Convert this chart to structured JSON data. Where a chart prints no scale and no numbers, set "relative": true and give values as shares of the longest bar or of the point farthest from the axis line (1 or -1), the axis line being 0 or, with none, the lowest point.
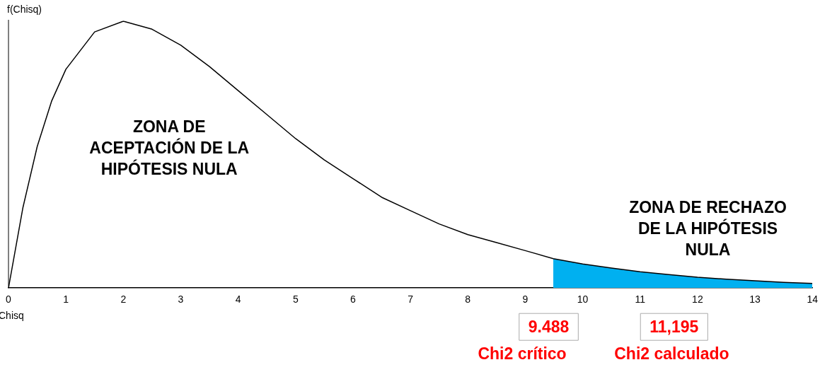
{
  "chart_data": {
    "type": "line",
    "relative": true,
    "xlabel": "Chisq",
    "ylabel": "f(Chisq)",
    "xlim": [
      0,
      14
    ],
    "xticks": [
      0,
      1,
      2,
      3,
      4,
      5,
      6,
      7,
      8,
      9,
      10,
      11,
      12,
      13,
      14
    ],
    "grid": false,
    "legend": false,
    "marker": "none",
    "series": [
      {
        "type": "line",
        "color": "#000000",
        "x": [
          0,
          0.25,
          0.5,
          0.75,
          1,
          1.5,
          2,
          2.5,
          3,
          3.5,
          4,
          4.5,
          5,
          5.5,
          6,
          6.5,
          7,
          7.5,
          8,
          8.5,
          9,
          9.488,
          10,
          10.5,
          11,
          11.5,
          12,
          12.5,
          13,
          13.5,
          14
        ],
        "values": [
          0,
          0.3,
          0.53,
          0.7,
          0.82,
          0.96,
          1,
          0.97,
          0.91,
          0.83,
          0.74,
          0.65,
          0.56,
          0.48,
          0.41,
          0.34,
          0.29,
          0.24,
          0.2,
          0.17,
          0.14,
          0.11,
          0.09,
          0.075,
          0.061,
          0.05,
          0.04,
          0.033,
          0.027,
          0.021,
          0.017
        ]
      },
      {
        "type": "area",
        "color": "#00b0f0",
        "x": [
          9.488,
          10,
          10.5,
          11,
          11.5,
          12,
          12.5,
          13,
          13.5,
          14
        ],
        "values": [
          0.11,
          0.09,
          0.075,
          0.061,
          0.05,
          0.04,
          0.033,
          0.027,
          0.021,
          0.017
        ]
      }
    ],
    "annotations": [
      "ZONA DE\nACEPTACIÓN DE LA\nHIPÓTESIS NULA",
      "ZONA DE RECHAZO\nDE LA HIPÓTESIS\nNULA",
      "9.488",
      "Chi2 crítico",
      "11,195",
      "Chi2 calculado"
    ]
  }
}
